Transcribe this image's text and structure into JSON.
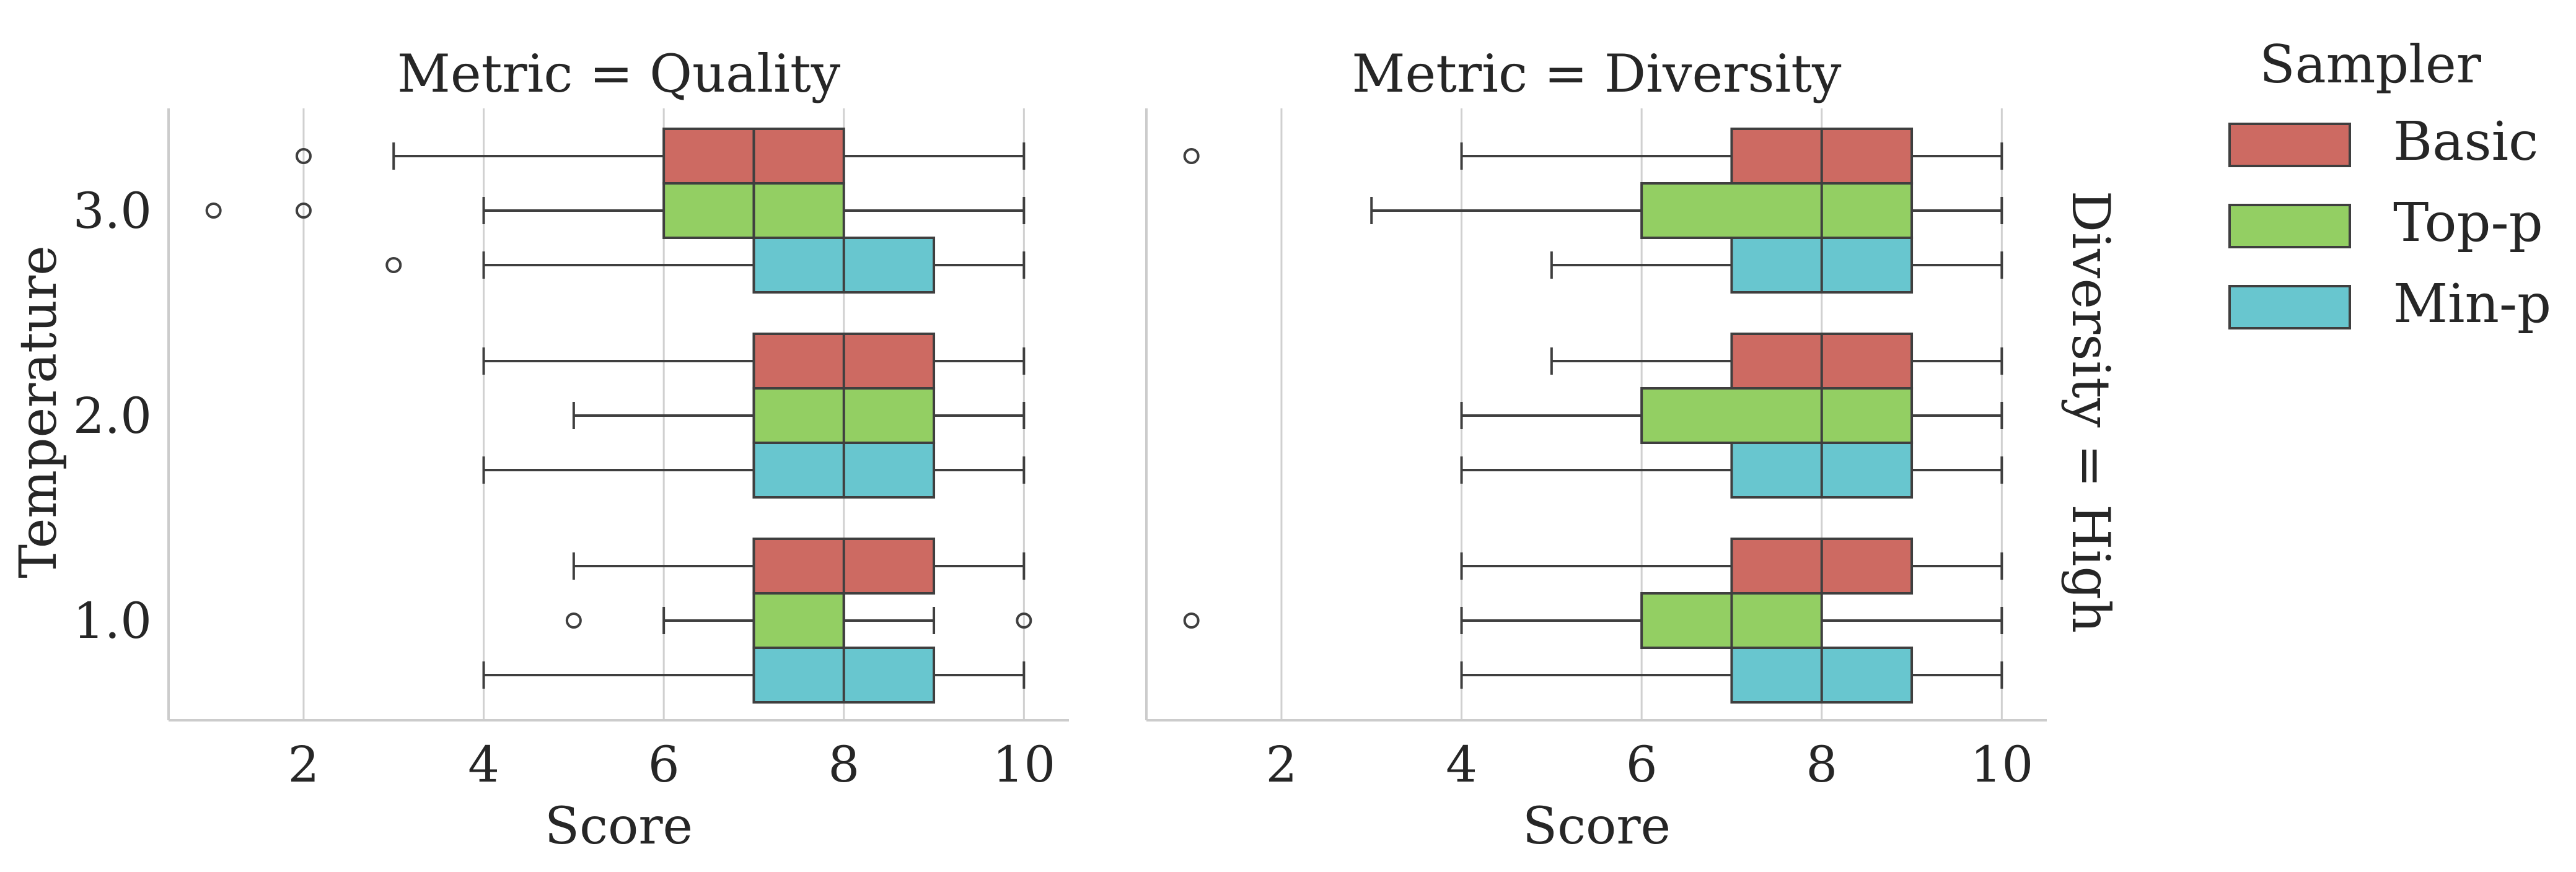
{
  "chart_data": {
    "type": "boxplot",
    "orientation": "horizontal",
    "xlabel": "Score",
    "ylabel": "Temperature",
    "row_facet_label": "Diversity = High",
    "xlim": [
      0.5,
      10.5
    ],
    "x_ticks": [
      2,
      4,
      6,
      8,
      10
    ],
    "y_categories": [
      "3.0",
      "2.0",
      "1.0"
    ],
    "grid": "vertical",
    "legend": {
      "title": "Sampler",
      "placement": "right",
      "entries": [
        {
          "name": "Basic",
          "color": "#cd6a62"
        },
        {
          "name": "Top-p",
          "color": "#93cf63"
        },
        {
          "name": "Min-p",
          "color": "#68c6cf"
        }
      ]
    },
    "panels": [
      {
        "title": "Metric = Quality",
        "groups": [
          {
            "category": "3.0",
            "boxes": [
              {
                "sampler": "Basic",
                "whisker_low": 3,
                "q1": 6,
                "median": 7,
                "q3": 8,
                "whisker_high": 10,
                "outliers": [
                  2
                ]
              },
              {
                "sampler": "Top-p",
                "whisker_low": 4,
                "q1": 6,
                "median": 7,
                "q3": 8,
                "whisker_high": 10,
                "outliers": [
                  1,
                  2
                ]
              },
              {
                "sampler": "Min-p",
                "whisker_low": 4,
                "q1": 7,
                "median": 8,
                "q3": 9,
                "whisker_high": 10,
                "outliers": [
                  3
                ]
              }
            ]
          },
          {
            "category": "2.0",
            "boxes": [
              {
                "sampler": "Basic",
                "whisker_low": 4,
                "q1": 7,
                "median": 8,
                "q3": 9,
                "whisker_high": 10,
                "outliers": []
              },
              {
                "sampler": "Top-p",
                "whisker_low": 5,
                "q1": 7,
                "median": 8,
                "q3": 9,
                "whisker_high": 10,
                "outliers": []
              },
              {
                "sampler": "Min-p",
                "whisker_low": 4,
                "q1": 7,
                "median": 8,
                "q3": 9,
                "whisker_high": 10,
                "outliers": []
              }
            ]
          },
          {
            "category": "1.0",
            "boxes": [
              {
                "sampler": "Basic",
                "whisker_low": 5,
                "q1": 7,
                "median": 8,
                "q3": 9,
                "whisker_high": 10,
                "outliers": []
              },
              {
                "sampler": "Top-p",
                "whisker_low": 6,
                "q1": 7,
                "median": 8,
                "q3": 8,
                "whisker_high": 9,
                "outliers": [
                  5,
                  10
                ]
              },
              {
                "sampler": "Min-p",
                "whisker_low": 4,
                "q1": 7,
                "median": 8,
                "q3": 9,
                "whisker_high": 10,
                "outliers": []
              }
            ]
          }
        ]
      },
      {
        "title": "Metric = Diversity",
        "groups": [
          {
            "category": "3.0",
            "boxes": [
              {
                "sampler": "Basic",
                "whisker_low": 4,
                "q1": 7,
                "median": 8,
                "q3": 9,
                "whisker_high": 10,
                "outliers": [
                  1
                ]
              },
              {
                "sampler": "Top-p",
                "whisker_low": 3,
                "q1": 6,
                "median": 8,
                "q3": 9,
                "whisker_high": 10,
                "outliers": []
              },
              {
                "sampler": "Min-p",
                "whisker_low": 5,
                "q1": 7,
                "median": 8,
                "q3": 9,
                "whisker_high": 10,
                "outliers": []
              }
            ]
          },
          {
            "category": "2.0",
            "boxes": [
              {
                "sampler": "Basic",
                "whisker_low": 5,
                "q1": 7,
                "median": 8,
                "q3": 9,
                "whisker_high": 10,
                "outliers": []
              },
              {
                "sampler": "Top-p",
                "whisker_low": 4,
                "q1": 6,
                "median": 8,
                "q3": 9,
                "whisker_high": 10,
                "outliers": []
              },
              {
                "sampler": "Min-p",
                "whisker_low": 4,
                "q1": 7,
                "median": 8,
                "q3": 9,
                "whisker_high": 10,
                "outliers": []
              }
            ]
          },
          {
            "category": "1.0",
            "boxes": [
              {
                "sampler": "Basic",
                "whisker_low": 4,
                "q1": 7,
                "median": 8,
                "q3": 9,
                "whisker_high": 10,
                "outliers": []
              },
              {
                "sampler": "Top-p",
                "whisker_low": 4,
                "q1": 6,
                "median": 7,
                "q3": 8,
                "whisker_high": 10,
                "outliers": [
                  1
                ]
              },
              {
                "sampler": "Min-p",
                "whisker_low": 4,
                "q1": 7,
                "median": 8,
                "q3": 9,
                "whisker_high": 10,
                "outliers": []
              }
            ]
          }
        ]
      }
    ]
  }
}
